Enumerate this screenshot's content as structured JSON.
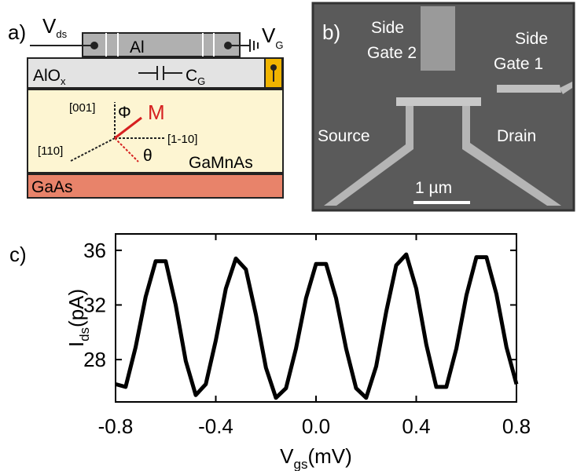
{
  "panel_a": {
    "label": "a)",
    "vds": {
      "main": "V",
      "sub": "ds"
    },
    "electrode": "Al",
    "vg": {
      "main": "V",
      "sub": "G"
    },
    "oxide": {
      "main": "AlO",
      "sub": "x"
    },
    "capacitor": {
      "main": "C",
      "sub": "G"
    },
    "dir_001": "[001]",
    "phi": "Φ",
    "magnetization": "M",
    "dir_110": "[110]",
    "dir_1m10": "[1-10]",
    "theta": "θ",
    "layer_gamnas": "GaMnAs",
    "layer_gaas": "GaAs"
  },
  "panel_b": {
    "label": "b)",
    "side_gate_2": [
      "Side",
      "Gate 2"
    ],
    "side_gate_1": [
      "Side",
      "Gate 1"
    ],
    "source": "Source",
    "drain": "Drain",
    "scale_bar": "1 µm"
  },
  "chart_data": {
    "type": "line",
    "label": "c)",
    "y_label": {
      "main": "I",
      "sub": "ds",
      "unit": "(pA)"
    },
    "x_label": {
      "main": "V",
      "sub": "gs",
      "unit": "(mV)"
    },
    "x": [
      -0.8,
      -0.76,
      -0.72,
      -0.68,
      -0.64,
      -0.6,
      -0.56,
      -0.52,
      -0.48,
      -0.44,
      -0.4,
      -0.36,
      -0.32,
      -0.28,
      -0.24,
      -0.2,
      -0.16,
      -0.12,
      -0.08,
      -0.04,
      0,
      0.04,
      0.08,
      0.12,
      0.16,
      0.2,
      0.24,
      0.28,
      0.32,
      0.36,
      0.4,
      0.44,
      0.48,
      0.52,
      0.56,
      0.6,
      0.64,
      0.68,
      0.72,
      0.76,
      0.8
    ],
    "values": [
      26.2,
      26.0,
      28.9,
      32.6,
      35.2,
      35.2,
      32.0,
      27.9,
      25.4,
      26.2,
      29.4,
      33.2,
      35.4,
      34.6,
      31.3,
      27.4,
      25.2,
      25.9,
      28.8,
      32.5,
      35.0,
      35.0,
      32.5,
      28.8,
      25.9,
      25.2,
      27.5,
      31.5,
      34.9,
      35.7,
      33.2,
      29.1,
      26.0,
      26.0,
      28.8,
      32.7,
      35.5,
      35.5,
      32.8,
      28.9,
      26.2
    ],
    "color": "#000000",
    "xlim": [
      -0.8,
      0.8
    ],
    "xticks": [
      -0.8,
      -0.4,
      {
        "value": 0,
        "label": "0.0"
      },
      0.4,
      0.8
    ],
    "ylim": [
      24.9,
      37.2
    ],
    "yticks": [
      28,
      32,
      36
    ]
  }
}
